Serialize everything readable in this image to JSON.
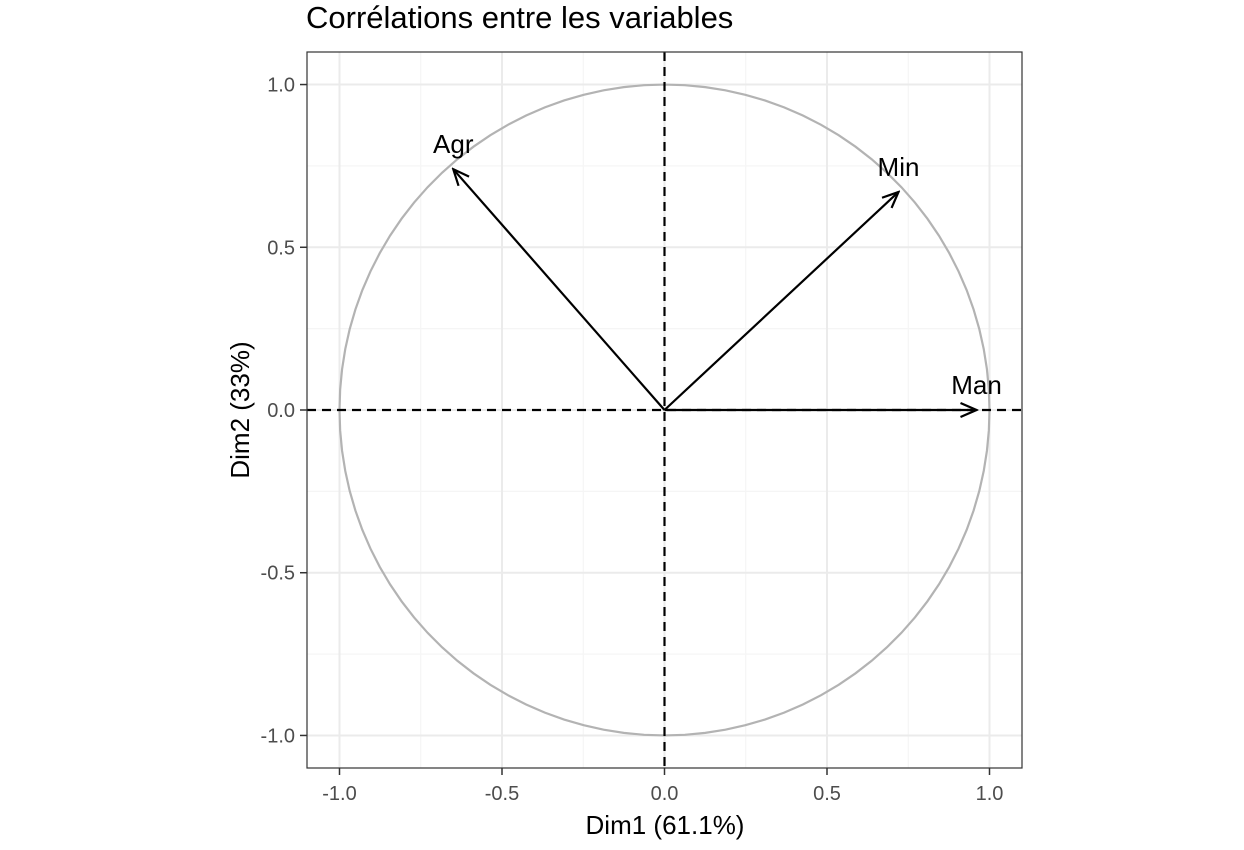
{
  "chart_data": {
    "type": "scatter",
    "subtype": "pca-correlation-circle",
    "title": "Corrélations entre les variables",
    "xlabel": "Dim1 (61.1%)",
    "ylabel": "Dim2 (33%)",
    "xlim": [
      -1.1,
      1.1
    ],
    "ylim": [
      -1.1,
      1.1
    ],
    "x_ticks": [
      -1.0,
      -0.5,
      0.0,
      0.5,
      1.0
    ],
    "y_ticks": [
      -1.0,
      -0.5,
      0.0,
      0.5,
      1.0
    ],
    "x_tick_labels": [
      "-1.0",
      "-0.5",
      "0.0",
      "0.5",
      "1.0"
    ],
    "y_tick_labels": [
      "-1.0",
      "-0.5",
      "0.0",
      "0.5",
      "1.0"
    ],
    "grid": true,
    "unit_circle": true,
    "reference_lines": {
      "x": 0,
      "y": 0,
      "style": "dashed"
    },
    "variables": [
      {
        "name": "Agr",
        "x": -0.65,
        "y": 0.74
      },
      {
        "name": "Min",
        "x": 0.72,
        "y": 0.67
      },
      {
        "name": "Man",
        "x": 0.96,
        "y": 0.0
      }
    ],
    "colors": {
      "circle": "#b3b3b3",
      "arrows": "#000000",
      "grid_major": "#ebebeb",
      "grid_minor": "#f5f5f5",
      "panel_border": "#333333"
    }
  }
}
